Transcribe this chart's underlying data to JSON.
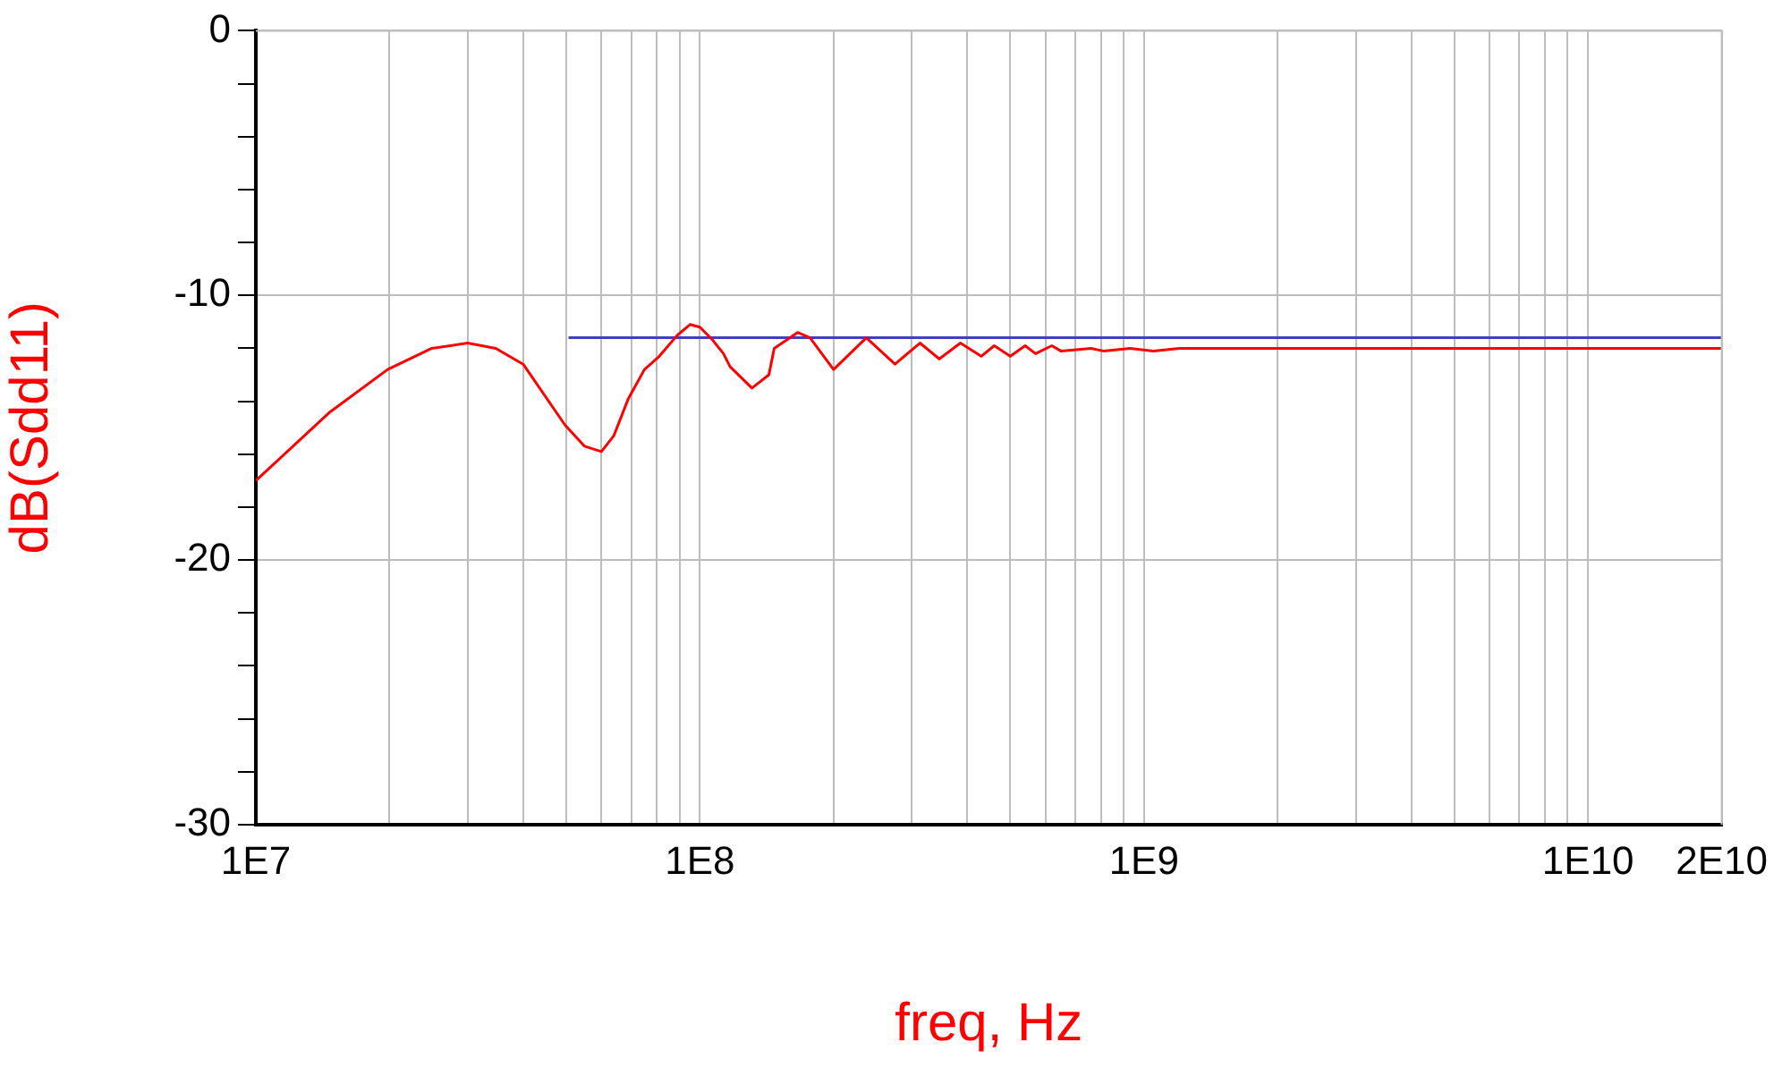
{
  "chart_data": {
    "type": "line",
    "xlabel": "freq, Hz",
    "ylabel": "dB(Sdd11)",
    "log": "x",
    "grid": true,
    "legend": false,
    "marker": "none",
    "line_style": "solid",
    "xlim": [
      10000000,
      20000000000
    ],
    "xticks": [
      {
        "value": 10000000,
        "label": "1E7"
      },
      {
        "value": 20000000,
        "label": null
      },
      {
        "value": 30000000,
        "label": null
      },
      {
        "value": 40000000,
        "label": null
      },
      {
        "value": 50000000,
        "label": null
      },
      {
        "value": 60000000,
        "label": null
      },
      {
        "value": 70000000,
        "label": null
      },
      {
        "value": 80000000,
        "label": null
      },
      {
        "value": 90000000,
        "label": null
      },
      {
        "value": 100000000,
        "label": "1E8"
      },
      {
        "value": 200000000,
        "label": null
      },
      {
        "value": 300000000,
        "label": null
      },
      {
        "value": 400000000,
        "label": null
      },
      {
        "value": 500000000,
        "label": null
      },
      {
        "value": 600000000,
        "label": null
      },
      {
        "value": 700000000,
        "label": null
      },
      {
        "value": 800000000,
        "label": null
      },
      {
        "value": 900000000,
        "label": null
      },
      {
        "value": 1000000000,
        "label": "1E9"
      },
      {
        "value": 2000000000,
        "label": null
      },
      {
        "value": 3000000000,
        "label": null
      },
      {
        "value": 4000000000,
        "label": null
      },
      {
        "value": 5000000000,
        "label": null
      },
      {
        "value": 6000000000,
        "label": null
      },
      {
        "value": 7000000000,
        "label": null
      },
      {
        "value": 8000000000,
        "label": null
      },
      {
        "value": 9000000000,
        "label": null
      },
      {
        "value": 10000000000,
        "label": "1E10"
      },
      {
        "value": 20000000000,
        "label": "2E10"
      }
    ],
    "ylim": [
      -30,
      0
    ],
    "yticks": [
      -30,
      {
        "value": -28,
        "label": null
      },
      {
        "value": -26,
        "label": null
      },
      {
        "value": -24,
        "label": null
      },
      {
        "value": -22,
        "label": null
      },
      -20,
      {
        "value": -18,
        "label": null
      },
      {
        "value": -16,
        "label": null
      },
      {
        "value": -14,
        "label": null
      },
      {
        "value": -12,
        "label": null
      },
      -10,
      {
        "value": -8,
        "label": null
      },
      {
        "value": -6,
        "label": null
      },
      {
        "value": -4,
        "label": null
      },
      {
        "value": -2,
        "label": null
      },
      0
    ],
    "series": [
      {
        "color": "#ff0000",
        "x": [
          10000000,
          14700000,
          19800000,
          24900000,
          30000000,
          34700000,
          40000000,
          49700000,
          55000000,
          60000000,
          64000000,
          69000000,
          75000000,
          81000000,
          89000000,
          95000000,
          100000000,
          107000000,
          113000000,
          117000000,
          131000000,
          143000000,
          147000000,
          166000000,
          177000000,
          200000000,
          237000000,
          275000000,
          313000000,
          346000000,
          386000000,
          430000000,
          460000000,
          500000000,
          540000000,
          570000000,
          620000000,
          650000000,
          760000000,
          810000000,
          930000000,
          1050000000,
          1200000000,
          20000000000
        ],
        "values": [
          -17.0,
          -14.4,
          -12.8,
          -12.0,
          -11.8,
          -12.0,
          -12.6,
          -14.9,
          -15.7,
          -15.9,
          -15.3,
          -13.9,
          -12.8,
          -12.3,
          -11.5,
          -11.1,
          -11.2,
          -11.7,
          -12.2,
          -12.7,
          -13.5,
          -13.0,
          -12.0,
          -11.4,
          -11.6,
          -12.8,
          -11.6,
          -12.6,
          -11.8,
          -12.4,
          -11.8,
          -12.3,
          -11.9,
          -12.3,
          -11.9,
          -12.2,
          -11.9,
          -12.1,
          -12.0,
          -12.1,
          -12.0,
          -12.1,
          -12.0,
          -12.0
        ]
      },
      {
        "color": "#3f3fbf",
        "x": [
          50600000,
          20000000000
        ],
        "values": [
          -11.6,
          -11.6
        ]
      }
    ]
  }
}
